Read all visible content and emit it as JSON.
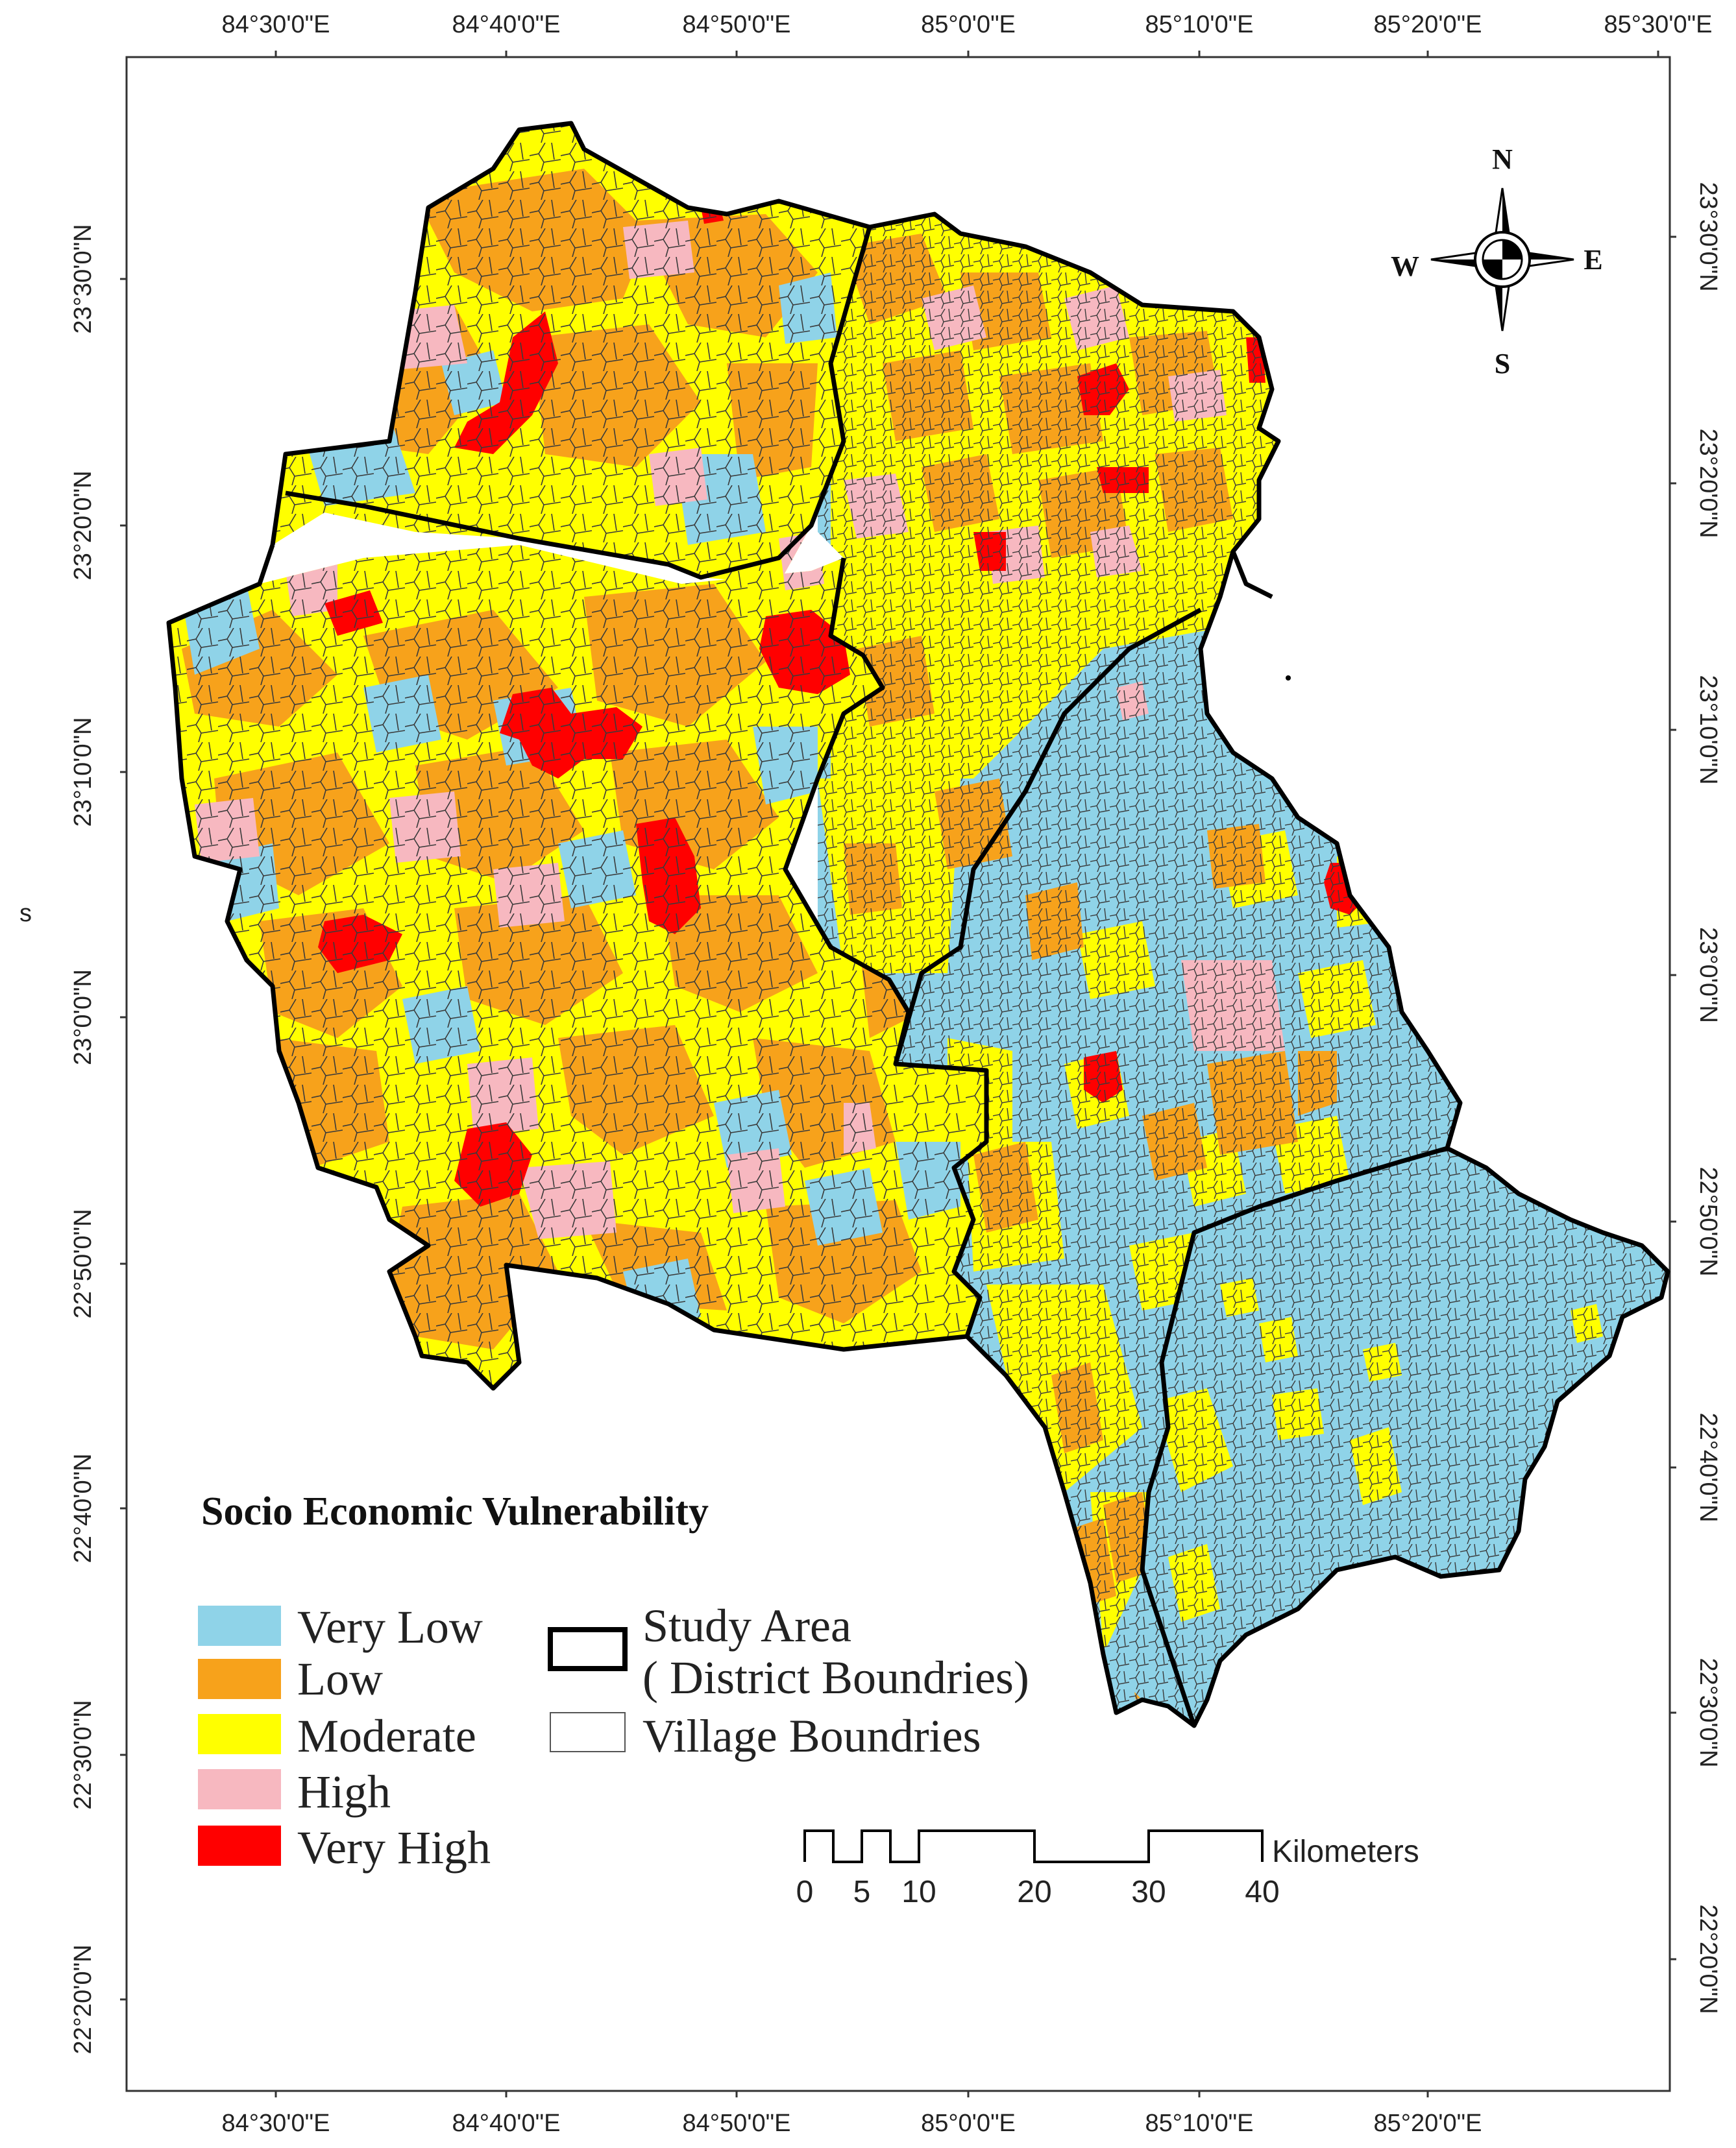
{
  "map": {
    "title": "Socio Economic Vulnerability",
    "stray_label": "s",
    "longitude_ticks": [
      "84°30'0\"E",
      "84°40'0\"E",
      "84°50'0\"E",
      "85°0'0\"E",
      "85°10'0\"E",
      "85°20'0\"E",
      "85°30'0\"E"
    ],
    "latitude_ticks": [
      "23°30'0\"N",
      "23°20'0\"N",
      "23°10'0\"N",
      "23°0'0\"N",
      "22°50'0\"N",
      "22°40'0\"N",
      "22°30'0\"N",
      "22°20'0\"N"
    ],
    "classes": [
      {
        "label": "Very Low",
        "color": "#8fd3e8"
      },
      {
        "label": "Low",
        "color": "#f7a21b"
      },
      {
        "label": "Moderate",
        "color": "#ffff00"
      },
      {
        "label": "High",
        "color": "#f7b8c0"
      },
      {
        "label": "Very High",
        "color": "#ff0000"
      }
    ],
    "boundary_legend": {
      "study_area_line1": "Study Area",
      "study_area_line2": "( District Boundries)",
      "village": "Village Boundries"
    },
    "scale_bar": {
      "unit": "Kilometers",
      "ticks": [
        "0",
        "5",
        "10",
        "20",
        "30",
        "40"
      ]
    },
    "compass": {
      "n": "N",
      "s": "S",
      "e": "E",
      "w": "W"
    }
  }
}
